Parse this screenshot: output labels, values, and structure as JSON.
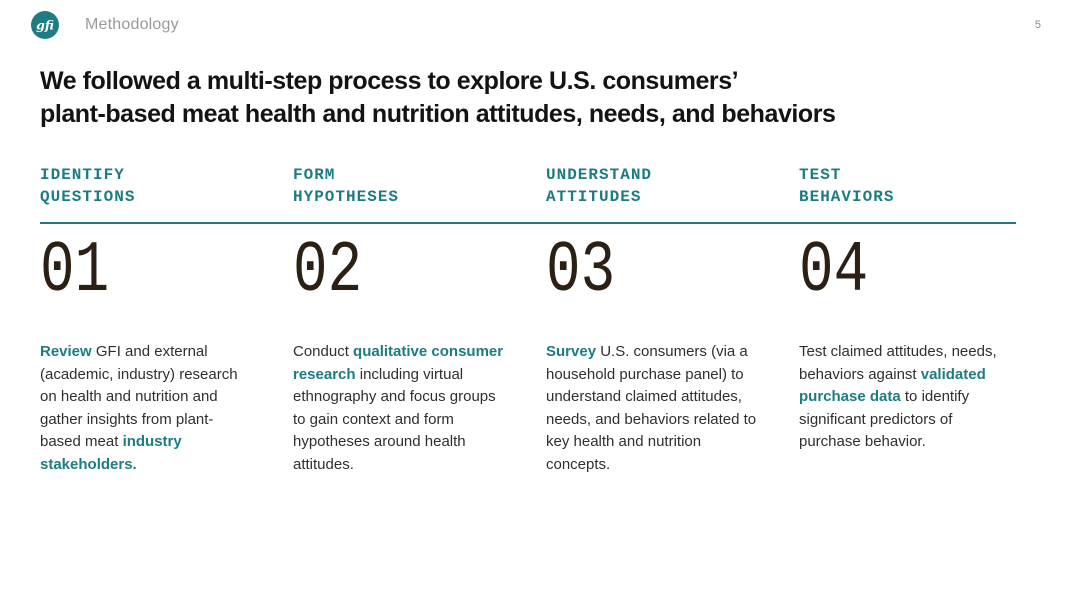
{
  "topbar": {
    "logo_text": "gfi",
    "section_label": "Methodology",
    "page_number": "5"
  },
  "title": "We followed a multi-step process to explore U.S. consumers’\nplant-based meat health and nutrition attitudes, needs, and behaviors",
  "colors": {
    "teal_accent": "#1d7b83",
    "rule_teal": "#277582",
    "title_text": "#131313",
    "body_text": "#2f2f2f",
    "number_text": "#2b2013",
    "muted_gray": "#9a9a9a"
  },
  "steps": [
    {
      "label": "IDENTIFY\nQUESTIONS",
      "number": "01",
      "description_runs": [
        {
          "t": "Review",
          "b": true
        },
        {
          "t": " GFI and external (academic, industry) research on health and nutrition and gather insights from plant-based meat ",
          "b": false
        },
        {
          "t": "industry stakeholders.",
          "b": true
        }
      ]
    },
    {
      "label": "FORM\nHYPOTHESES",
      "number": "02",
      "description_runs": [
        {
          "t": "Conduct ",
          "b": false
        },
        {
          "t": "qualitative consumer research",
          "b": true
        },
        {
          "t": " including virtual ethnography and focus groups to gain context and form hypotheses around health attitudes.",
          "b": false
        }
      ]
    },
    {
      "label": "UNDERSTAND\nATTITUDES",
      "number": "03",
      "description_runs": [
        {
          "t": "Survey",
          "b": true
        },
        {
          "t": " U.S. consumers (via a household purchase panel) to understand claimed attitudes, needs, and behaviors related to key health and nutrition concepts.",
          "b": false
        }
      ]
    },
    {
      "label": "TEST\nBEHAVIORS",
      "number": "04",
      "description_runs": [
        {
          "t": "Test claimed attitudes, needs, behaviors against ",
          "b": false
        },
        {
          "t": "validated purchase data",
          "b": true
        },
        {
          "t": " to identify significant predictors of purchase behavior.",
          "b": false
        }
      ]
    }
  ]
}
